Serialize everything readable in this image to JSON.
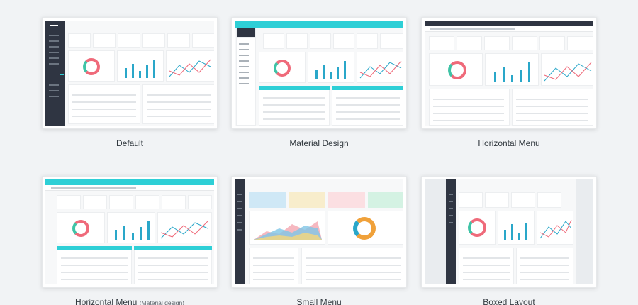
{
  "layouts": [
    {
      "caption": "Default",
      "sub": ""
    },
    {
      "caption": "Material Design",
      "sub": ""
    },
    {
      "caption": "Horizontal Menu",
      "sub": ""
    },
    {
      "caption": "Horizontal Menu",
      "sub": "(Material design)"
    },
    {
      "caption": "Small Menu",
      "sub": ""
    },
    {
      "caption": "Boxed Layout",
      "sub": ""
    }
  ],
  "colors": {
    "page_bg": "#f1f3f5",
    "sidebar_dark": "#2f3542",
    "accent_teal": "#2ecfd6",
    "chart_blue": "#2aa7c9",
    "donut_red": "#ef6a7a",
    "donut_green": "#3fc3a6"
  }
}
